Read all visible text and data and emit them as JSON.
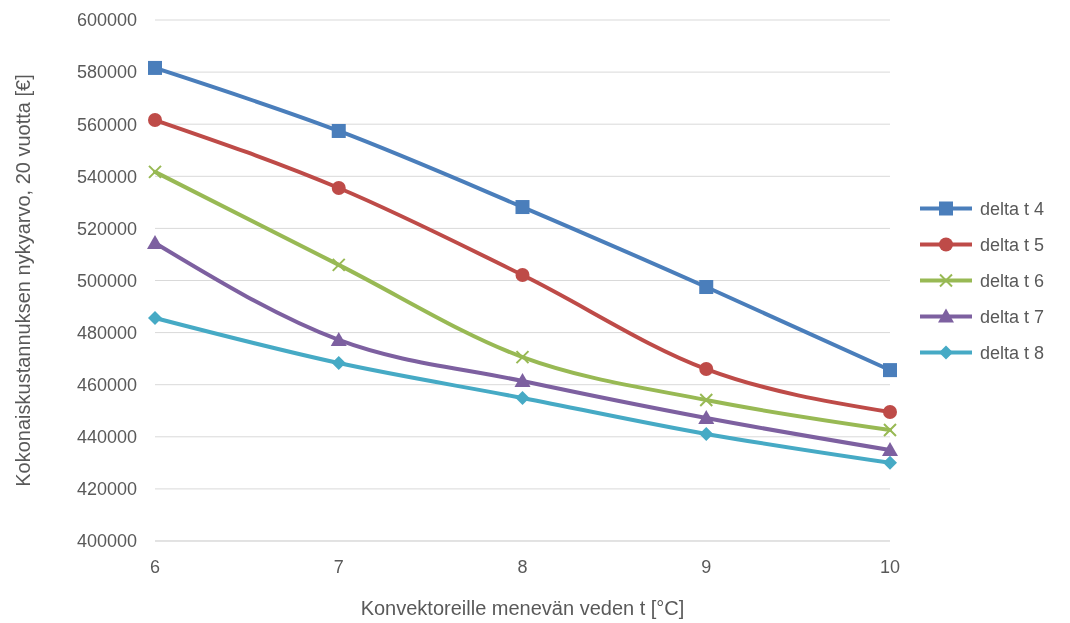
{
  "chart_data": {
    "type": "line",
    "xlabel": "Konvektoreille menevän veden t [°C]",
    "ylabel": "Kokonaiskustannuksen nykyarvo, 20 vuotta [€]",
    "x": [
      6,
      7,
      8,
      9,
      10
    ],
    "xlim": [
      6,
      10
    ],
    "xticks": [
      6,
      7,
      8,
      9,
      10
    ],
    "ylim": [
      400000,
      600000
    ],
    "yticks": [
      400000,
      420000,
      440000,
      460000,
      480000,
      500000,
      520000,
      540000,
      560000,
      580000,
      600000
    ],
    "grid": "y",
    "legend": "right",
    "line_style": "solid",
    "series": [
      {
        "name": "delta t 4",
        "color": "#4a7ebb",
        "marker": "square",
        "values": [
          581600,
          557400,
          528200,
          497500,
          465600
        ]
      },
      {
        "name": "delta t 5",
        "color": "#be4b48",
        "marker": "circle",
        "values": [
          561600,
          535500,
          502100,
          466000,
          449500
        ]
      },
      {
        "name": "delta t 6",
        "color": "#98b954",
        "marker": "cross",
        "values": [
          541700,
          506000,
          470600,
          454100,
          442600
        ]
      },
      {
        "name": "delta t 7",
        "color": "#7d60a0",
        "marker": "triangle",
        "values": [
          514400,
          477200,
          461400,
          447200,
          434900
        ]
      },
      {
        "name": "delta t 8",
        "color": "#46aac5",
        "marker": "diamond",
        "values": [
          485600,
          468300,
          454900,
          441100,
          430000
        ]
      }
    ]
  }
}
